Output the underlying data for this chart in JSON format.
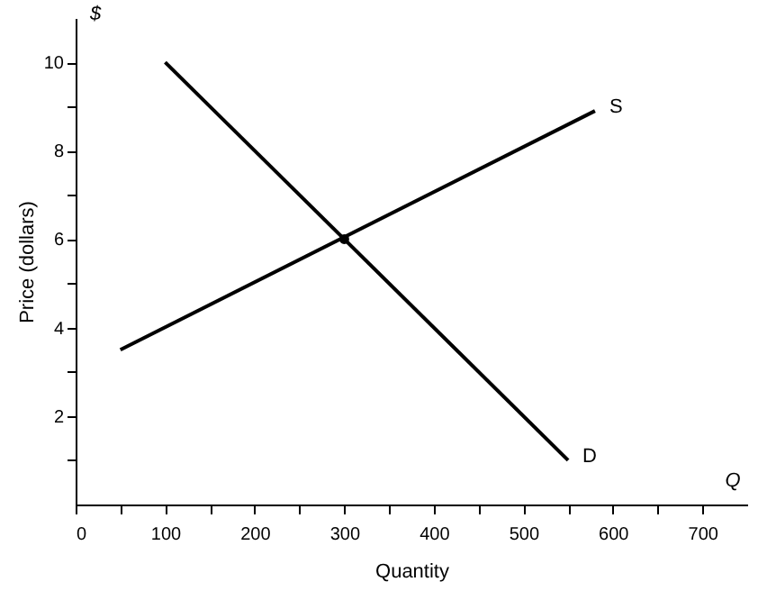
{
  "chart_data": {
    "type": "line",
    "xlabel": "Quantity",
    "ylabel": "Price (dollars)",
    "annotations": [
      "$",
      "Q"
    ],
    "series": [
      {
        "name": "S",
        "color": "#000000",
        "x": [
          50,
          580
        ],
        "values": [
          3.5,
          8.9
        ]
      },
      {
        "name": "D",
        "color": "#000000",
        "x": [
          100,
          550
        ],
        "values": [
          10,
          1
        ]
      },
      {
        "type": "scatter",
        "color": "#000000",
        "x": [
          300
        ],
        "values": [
          6
        ],
        "marker": "circle"
      }
    ],
    "xlim": [
      0,
      750
    ],
    "ylim": [
      0,
      11
    ],
    "xticks": [
      0,
      {
        "value": 50,
        "label": null
      },
      100,
      {
        "value": 150,
        "label": null
      },
      200,
      {
        "value": 250,
        "label": null
      },
      300,
      {
        "value": 350,
        "label": null
      },
      400,
      {
        "value": 450,
        "label": null
      },
      500,
      {
        "value": 550,
        "label": null
      },
      600,
      {
        "value": 650,
        "label": null
      },
      700
    ],
    "yticks": [
      {
        "value": 1,
        "label": null
      },
      2,
      {
        "value": 3,
        "label": null
      },
      4,
      {
        "value": 5,
        "label": null
      },
      6,
      {
        "value": 7,
        "label": null
      },
      8,
      {
        "value": 9,
        "label": null
      },
      10
    ],
    "grid": false,
    "legend": false,
    "marker": "none",
    "line_style": "solid"
  }
}
